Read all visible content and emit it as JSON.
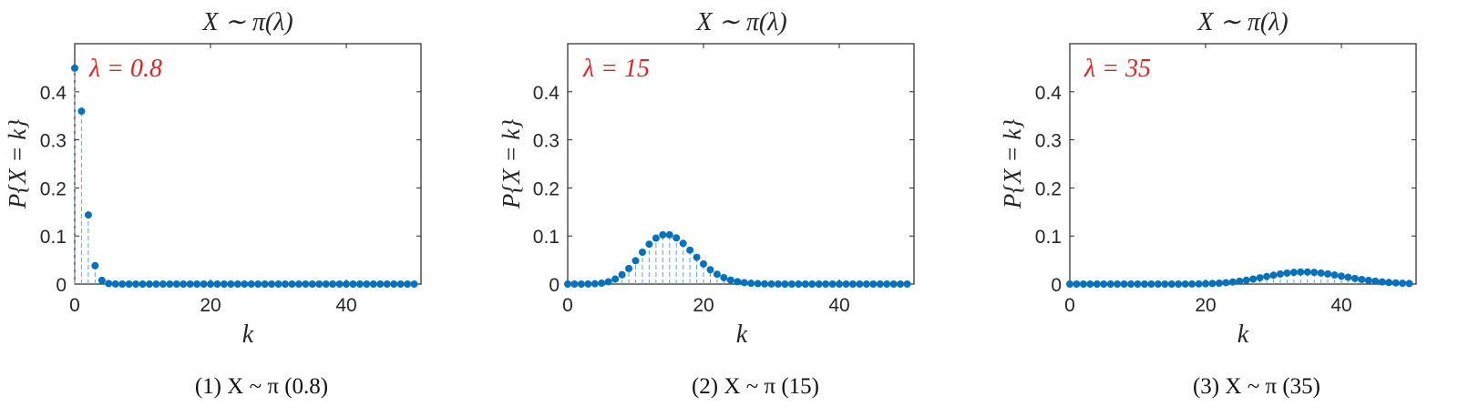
{
  "panels": [
    {
      "title": "X ∼ π(λ)",
      "annotation": "λ = 0.8",
      "caption": "(1) X ~ π (0.8)",
      "chart_data": {
        "type": "scatter",
        "x": [
          0,
          1,
          2,
          3,
          4,
          5,
          6,
          7,
          8,
          9,
          10,
          11,
          12,
          13,
          14,
          15,
          16,
          17,
          18,
          19,
          20,
          21,
          22,
          23,
          24,
          25,
          26,
          27,
          28,
          29,
          30,
          31,
          32,
          33,
          34,
          35,
          36,
          37,
          38,
          39,
          40,
          41,
          42,
          43,
          44,
          45,
          46,
          47,
          48,
          49,
          50
        ],
        "values": [
          0.4493,
          0.3595,
          0.1438,
          0.0383,
          0.0077,
          0.0012,
          0.0002,
          0,
          0,
          0,
          0,
          0,
          0,
          0,
          0,
          0,
          0,
          0,
          0,
          0,
          0,
          0,
          0,
          0,
          0,
          0,
          0,
          0,
          0,
          0,
          0,
          0,
          0,
          0,
          0,
          0,
          0,
          0,
          0,
          0,
          0,
          0,
          0,
          0,
          0,
          0,
          0,
          0,
          0,
          0,
          0
        ],
        "xlabel": "k",
        "ylabel": "P{X = k}",
        "xlim": [
          0,
          51
        ],
        "ylim": [
          0,
          0.5
        ],
        "xticks": [
          "0",
          "20",
          "40"
        ],
        "yticks": [
          "0",
          "0.1",
          "0.2",
          "0.3",
          "0.4"
        ],
        "stem_style": "dashed",
        "grid": false
      }
    },
    {
      "title": "X ∼ π(λ)",
      "annotation": "λ = 15",
      "caption": "(2) X ~ π (15)",
      "chart_data": {
        "type": "scatter",
        "x": [
          0,
          1,
          2,
          3,
          4,
          5,
          6,
          7,
          8,
          9,
          10,
          11,
          12,
          13,
          14,
          15,
          16,
          17,
          18,
          19,
          20,
          21,
          22,
          23,
          24,
          25,
          26,
          27,
          28,
          29,
          30,
          31,
          32,
          33,
          34,
          35,
          36,
          37,
          38,
          39,
          40,
          41,
          42,
          43,
          44,
          45,
          46,
          47,
          48,
          49,
          50
        ],
        "values": [
          0,
          0,
          0,
          0.0002,
          0.0006,
          0.0019,
          0.0048,
          0.0104,
          0.0194,
          0.0324,
          0.0486,
          0.0663,
          0.0829,
          0.0956,
          0.1024,
          0.1024,
          0.096,
          0.0847,
          0.0706,
          0.0557,
          0.0418,
          0.0299,
          0.0204,
          0.0133,
          0.0083,
          0.005,
          0.0029,
          0.0016,
          0.0009,
          0.0004,
          0.0002,
          0.0001,
          0,
          0,
          0,
          0,
          0,
          0,
          0,
          0,
          0,
          0,
          0,
          0,
          0,
          0,
          0,
          0,
          0,
          0,
          0
        ],
        "xlabel": "k",
        "ylabel": "P{X = k}",
        "xlim": [
          0,
          51
        ],
        "ylim": [
          0,
          0.5
        ],
        "xticks": [
          "0",
          "20",
          "40"
        ],
        "yticks": [
          "0",
          "0.1",
          "0.2",
          "0.3",
          "0.4"
        ],
        "stem_style": "dashed",
        "grid": false
      }
    },
    {
      "title": "X ∼ π(λ)",
      "annotation": "λ = 35",
      "caption": "(3) X ~ π (35)",
      "chart_data": {
        "type": "scatter",
        "x": [
          0,
          1,
          2,
          3,
          4,
          5,
          6,
          7,
          8,
          9,
          10,
          11,
          12,
          13,
          14,
          15,
          16,
          17,
          18,
          19,
          20,
          21,
          22,
          23,
          24,
          25,
          26,
          27,
          28,
          29,
          30,
          31,
          32,
          33,
          34,
          35,
          36,
          37,
          38,
          39,
          40,
          41,
          42,
          43,
          44,
          45,
          46,
          47,
          48,
          49,
          50
        ],
        "values": [
          0,
          0,
          0,
          0,
          0,
          0,
          0,
          0,
          0,
          0,
          0,
          0,
          0,
          0,
          0,
          0,
          0,
          0.0001,
          0.0002,
          0.0004,
          0.0007,
          0.0012,
          0.0019,
          0.0029,
          0.0043,
          0.006,
          0.008,
          0.0104,
          0.0131,
          0.0158,
          0.0185,
          0.0209,
          0.0229,
          0.0243,
          0.025,
          0.025,
          0.0243,
          0.0229,
          0.0211,
          0.0189,
          0.0166,
          0.0141,
          0.0117,
          0.0095,
          0.0076,
          0.0059,
          0.0045,
          0.0033,
          0.0024,
          0.0017,
          0.0012
        ],
        "xlabel": "k",
        "ylabel": "P{X = k}",
        "xlim": [
          0,
          51
        ],
        "ylim": [
          0,
          0.5
        ],
        "xticks": [
          "0",
          "20",
          "40"
        ],
        "yticks": [
          "0",
          "0.1",
          "0.2",
          "0.3",
          "0.4"
        ],
        "stem_style": "dashed",
        "grid": false
      }
    }
  ],
  "colors": {
    "marker": "#0072BD",
    "stem": "#6fa9d6",
    "annotation": "#d62728",
    "axis": "#262626"
  }
}
